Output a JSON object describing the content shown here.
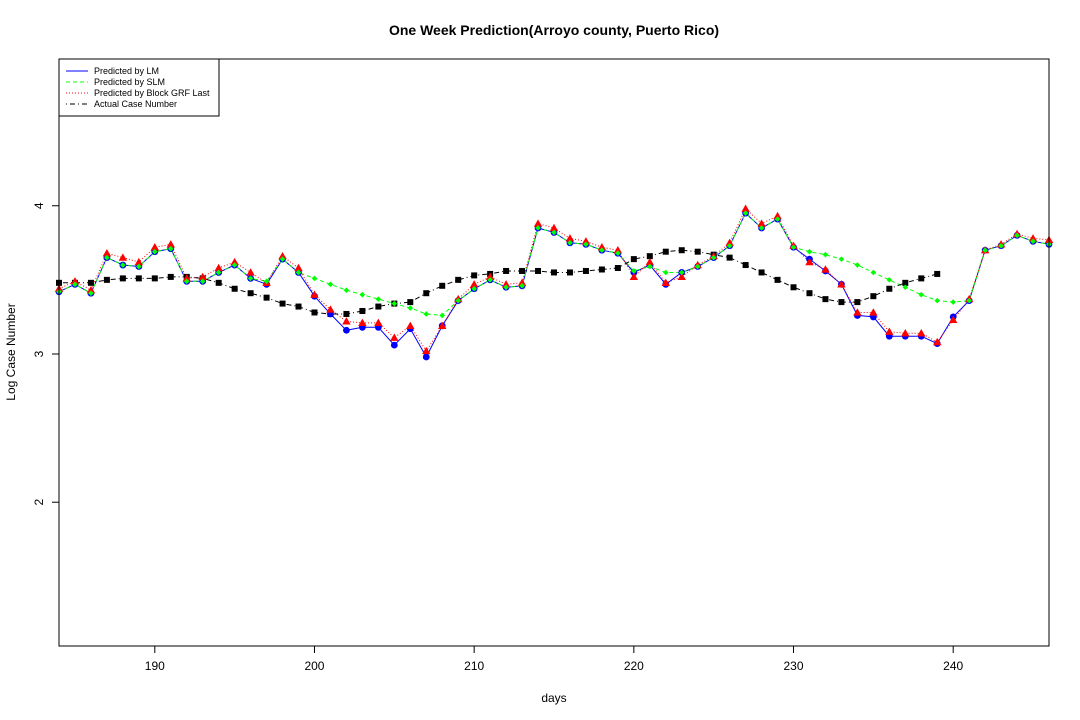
{
  "chart_data": {
    "type": "line",
    "title": "One Week Prediction(Arroyo county, Puerto Rico)",
    "xlabel": "days",
    "ylabel": "Log Case Number",
    "xlim": [
      184,
      246
    ],
    "ylim": [
      1.03,
      4.99
    ],
    "x_ticks": [
      190,
      200,
      210,
      220,
      230,
      240
    ],
    "y_ticks": [
      2,
      3,
      4
    ],
    "grid": false,
    "legend_position": "top-left",
    "series": [
      {
        "name": "Predicted by LM",
        "line_color": "#0000ff",
        "line_style": "solid",
        "marker": "circle",
        "marker_color": "#0000ff",
        "x": [
          184,
          185,
          186,
          187,
          188,
          189,
          190,
          191,
          192,
          193,
          194,
          195,
          196,
          197,
          198,
          199,
          200,
          201,
          202,
          203,
          204,
          205,
          206,
          207,
          208,
          209,
          210,
          211,
          212,
          213,
          214,
          215,
          216,
          217,
          218,
          219,
          220,
          221,
          222,
          223,
          224,
          225,
          226,
          227,
          228,
          229,
          230,
          231,
          232,
          233,
          234,
          235,
          236,
          237,
          238,
          239,
          240,
          241,
          242,
          243,
          244,
          245,
          246
        ],
        "y": [
          3.42,
          3.47,
          3.41,
          3.65,
          3.6,
          3.59,
          3.69,
          3.71,
          3.49,
          3.49,
          3.55,
          3.6,
          3.51,
          3.47,
          3.64,
          3.55,
          3.39,
          3.27,
          3.16,
          3.18,
          3.18,
          3.06,
          3.17,
          2.98,
          3.19,
          3.36,
          3.44,
          3.5,
          3.45,
          3.46,
          3.85,
          3.82,
          3.75,
          3.74,
          3.7,
          3.68,
          3.55,
          3.6,
          3.47,
          3.55,
          3.59,
          3.65,
          3.73,
          3.95,
          3.85,
          3.91,
          3.72,
          3.64,
          3.56,
          3.47,
          3.26,
          3.25,
          3.12,
          3.12,
          3.12,
          3.07,
          3.25,
          3.36,
          3.7,
          3.73,
          3.8,
          3.76,
          3.74
        ]
      },
      {
        "name": "Predicted by SLM",
        "line_color": "#00ff00",
        "line_style": "dashed",
        "marker": "diamond",
        "marker_color": "#00ff00",
        "x": [
          184,
          185,
          186,
          187,
          188,
          189,
          190,
          191,
          192,
          193,
          194,
          195,
          196,
          197,
          198,
          199,
          200,
          201,
          202,
          203,
          204,
          205,
          206,
          207,
          208,
          209,
          210,
          211,
          212,
          213,
          214,
          215,
          216,
          217,
          218,
          219,
          220,
          221,
          222,
          223,
          224,
          225,
          226,
          227,
          228,
          229,
          230,
          231,
          232,
          233,
          234,
          235,
          236,
          237,
          238,
          239,
          240,
          241,
          242,
          243,
          244,
          245,
          246
        ],
        "y": [
          3.42,
          3.47,
          3.41,
          3.65,
          3.6,
          3.59,
          3.69,
          3.71,
          3.49,
          3.49,
          3.55,
          3.6,
          3.51,
          3.49,
          3.64,
          3.55,
          3.51,
          3.47,
          3.43,
          3.4,
          3.37,
          3.34,
          3.31,
          3.27,
          3.26,
          3.36,
          3.44,
          3.5,
          3.45,
          3.46,
          3.85,
          3.82,
          3.75,
          3.74,
          3.7,
          3.68,
          3.56,
          3.59,
          3.55,
          3.55,
          3.59,
          3.65,
          3.73,
          3.95,
          3.85,
          3.91,
          3.72,
          3.69,
          3.67,
          3.64,
          3.6,
          3.55,
          3.5,
          3.45,
          3.4,
          3.36,
          3.35,
          3.36,
          3.7,
          3.73,
          3.8,
          3.76,
          3.74
        ]
      },
      {
        "name": "Predicted by Block GRF Last",
        "line_color": "#ff0000",
        "line_style": "dotted",
        "marker": "triangle",
        "marker_color": "#ff0000",
        "x": [
          184,
          185,
          186,
          187,
          188,
          189,
          190,
          191,
          192,
          193,
          194,
          195,
          196,
          197,
          198,
          199,
          200,
          201,
          202,
          203,
          204,
          205,
          206,
          207,
          208,
          209,
          210,
          211,
          212,
          213,
          214,
          215,
          216,
          217,
          218,
          219,
          220,
          221,
          222,
          223,
          224,
          225,
          226,
          227,
          228,
          229,
          230,
          231,
          232,
          233,
          234,
          235,
          236,
          237,
          238,
          239,
          240,
          241,
          242,
          243,
          244,
          245,
          246
        ],
        "y": [
          3.44,
          3.49,
          3.43,
          3.68,
          3.65,
          3.62,
          3.72,
          3.74,
          3.51,
          3.52,
          3.58,
          3.62,
          3.55,
          3.48,
          3.66,
          3.58,
          3.4,
          3.3,
          3.22,
          3.21,
          3.21,
          3.11,
          3.19,
          3.02,
          3.19,
          3.37,
          3.47,
          3.52,
          3.47,
          3.48,
          3.88,
          3.85,
          3.78,
          3.76,
          3.72,
          3.7,
          3.52,
          3.62,
          3.48,
          3.52,
          3.6,
          3.66,
          3.75,
          3.98,
          3.88,
          3.93,
          3.73,
          3.62,
          3.57,
          3.47,
          3.28,
          3.28,
          3.15,
          3.14,
          3.14,
          3.08,
          3.23,
          3.37,
          3.7,
          3.74,
          3.81,
          3.78,
          3.77
        ]
      },
      {
        "name": "Actual Case Number",
        "line_color": "#000000",
        "line_style": "dotdash",
        "marker": "square",
        "marker_color": "#000000",
        "x": [
          184,
          185,
          186,
          187,
          188,
          189,
          190,
          191,
          192,
          193,
          194,
          195,
          196,
          197,
          198,
          199,
          200,
          201,
          202,
          203,
          204,
          205,
          206,
          207,
          208,
          209,
          210,
          211,
          212,
          213,
          214,
          215,
          216,
          217,
          218,
          219,
          220,
          221,
          222,
          223,
          224,
          225,
          226,
          227,
          228,
          229,
          230,
          231,
          232,
          233,
          234,
          235,
          236,
          237,
          238,
          239
        ],
        "y": [
          3.48,
          3.48,
          3.48,
          3.5,
          3.51,
          3.51,
          3.51,
          3.52,
          3.52,
          3.51,
          3.48,
          3.44,
          3.41,
          3.38,
          3.34,
          3.32,
          3.28,
          3.27,
          3.27,
          3.29,
          3.32,
          3.34,
          3.35,
          3.41,
          3.46,
          3.5,
          3.53,
          3.54,
          3.56,
          3.56,
          3.56,
          3.55,
          3.55,
          3.56,
          3.57,
          3.58,
          3.64,
          3.66,
          3.69,
          3.7,
          3.69,
          3.67,
          3.65,
          3.6,
          3.55,
          3.5,
          3.45,
          3.41,
          3.37,
          3.35,
          3.35,
          3.39,
          3.44,
          3.48,
          3.51,
          3.54
        ]
      }
    ]
  }
}
